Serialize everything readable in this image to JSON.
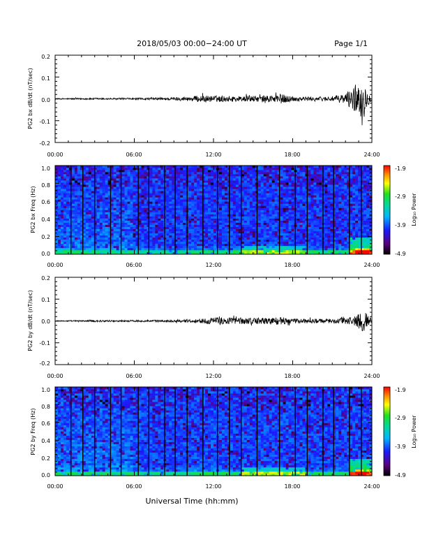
{
  "header": {
    "title": "2018/05/03  00:00−24:00 UT",
    "page": "Page 1/1"
  },
  "footer": {
    "xlabel": "Universal Time (hh:mm)"
  },
  "colorbar": {
    "label": "Log₁₀ Power",
    "ticks": [
      "-1.9",
      "-2.9",
      "-3.9",
      "-4.9"
    ]
  },
  "chart_data": [
    {
      "type": "line",
      "title": "",
      "ylabel": "PG2 bx dB/dt (nT/sec)",
      "xlim": [
        0,
        24
      ],
      "ylim": [
        -0.2,
        0.2
      ],
      "x_ticks": [
        "00:00",
        "06:00",
        "12:00",
        "18:00",
        "24:00"
      ],
      "y_ticks": [
        "0.2",
        "0.1",
        "0.0",
        "-0.1",
        "-0.2"
      ],
      "envelope": {
        "x_hours": [
          0,
          2,
          4,
          6,
          8,
          10,
          11,
          12,
          14,
          16,
          17,
          18,
          20,
          21,
          22,
          22.5,
          23,
          23.3,
          23.6,
          24
        ],
        "amplitude": [
          0.003,
          0.004,
          0.005,
          0.005,
          0.007,
          0.012,
          0.02,
          0.018,
          0.016,
          0.018,
          0.03,
          0.014,
          0.012,
          0.015,
          0.03,
          0.06,
          0.11,
          0.1,
          0.05,
          0.01
        ]
      }
    },
    {
      "type": "heatmap",
      "title": "",
      "ylabel": "PG2 bx Freq (Hz)",
      "xlim": [
        0,
        24
      ],
      "ylim": [
        0.0,
        1.0
      ],
      "x_ticks": [
        "00:00",
        "06:00",
        "12:00",
        "18:00",
        "24:00"
      ],
      "y_ticks": [
        "1.0",
        "0.8",
        "0.6",
        "0.4",
        "0.2",
        "0.0"
      ],
      "colorbar_range": [
        -4.9,
        -1.9
      ],
      "gap_lines_hours": [
        1.2,
        2.1,
        3.0,
        4.2,
        5.0,
        6.3,
        7.1,
        8.3,
        9.1,
        10.0,
        11.2,
        12.3,
        13.2,
        14.1,
        15.3,
        17.0,
        18.2,
        19.1,
        20.3,
        21.1,
        22.3,
        23.2
      ]
    },
    {
      "type": "line",
      "title": "",
      "ylabel": "PG2 by dB/dt (nT/sec)",
      "xlim": [
        0,
        24
      ],
      "ylim": [
        -0.2,
        0.2
      ],
      "x_ticks": [
        "00:00",
        "06:00",
        "12:00",
        "18:00",
        "24:00"
      ],
      "y_ticks": [
        "0.2",
        "0.1",
        "0.0",
        "-0.1",
        "-0.2"
      ],
      "envelope": {
        "x_hours": [
          0,
          2,
          3,
          4,
          6,
          8,
          10,
          11,
          12,
          13,
          14,
          16,
          17,
          18,
          20,
          21,
          22,
          22.5,
          23,
          23.4,
          24
        ],
        "amplitude": [
          0.003,
          0.004,
          0.006,
          0.005,
          0.005,
          0.006,
          0.008,
          0.012,
          0.02,
          0.022,
          0.018,
          0.02,
          0.022,
          0.014,
          0.012,
          0.014,
          0.018,
          0.03,
          0.05,
          0.06,
          0.01
        ]
      }
    },
    {
      "type": "heatmap",
      "title": "",
      "ylabel": "PG2 by Freq (Hz)",
      "xlim": [
        0,
        24
      ],
      "ylim": [
        0.0,
        1.0
      ],
      "x_ticks": [
        "00:00",
        "06:00",
        "12:00",
        "18:00",
        "24:00"
      ],
      "y_ticks": [
        "1.0",
        "0.8",
        "0.6",
        "0.4",
        "0.2",
        "0.0"
      ],
      "colorbar_range": [
        -4.9,
        -1.9
      ],
      "gap_lines_hours": [
        1.2,
        2.1,
        3.0,
        4.2,
        5.0,
        6.3,
        7.1,
        8.3,
        9.1,
        10.0,
        11.2,
        12.3,
        13.2,
        14.1,
        15.3,
        17.0,
        18.2,
        19.1,
        20.3,
        21.1,
        22.3,
        23.2
      ]
    }
  ]
}
